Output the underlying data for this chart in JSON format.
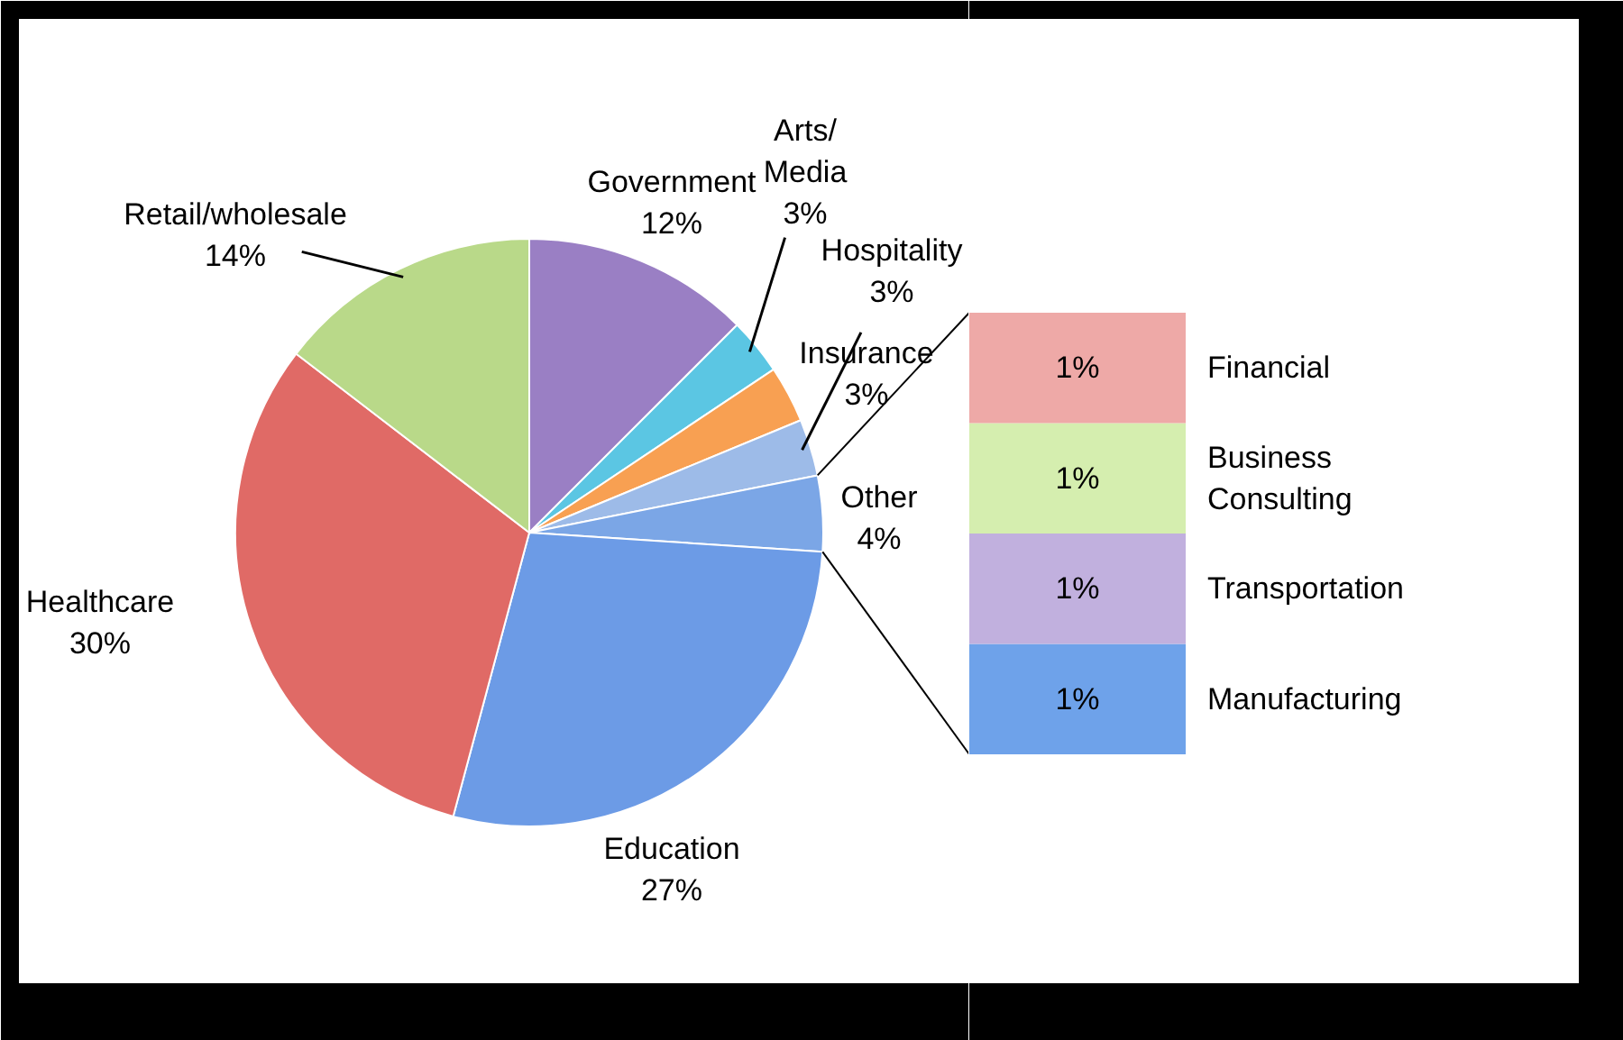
{
  "chart_data": [
    {
      "type": "pie",
      "categories": [
        "Government",
        "Arts/\nMedia",
        "Insurance",
        "Hospitality",
        "Other",
        "Education",
        "Healthcare",
        "Retail/wholesale"
      ],
      "values": [
        12,
        3,
        3,
        3,
        4,
        27,
        30,
        14
      ],
      "colors": [
        "#9a7fc4",
        "#5bc6e3",
        "#f8a052",
        "#9dbbe8",
        "#7ba6e6",
        "#6c9be6",
        "#e06a66",
        "#b9d989"
      ],
      "value_labels": [
        "12%",
        "3%",
        "3%",
        "3%",
        "4%",
        "27%",
        "30%",
        "14%"
      ]
    },
    {
      "type": "bar",
      "stacked": true,
      "categories": [
        null
      ],
      "series": [
        {
          "name": "Manufacturing",
          "color": "#6ea2ea",
          "values": [
            1
          ],
          "value_labels": [
            "1%"
          ]
        },
        {
          "name": "Transportation",
          "color": "#c1b0de",
          "values": [
            1
          ],
          "value_labels": [
            "1%"
          ]
        },
        {
          "name": "Business\nConsulting",
          "color": "#d5eeaf",
          "values": [
            1
          ],
          "value_labels": [
            "1%"
          ]
        },
        {
          "name": "Financial",
          "color": "#eea9a7",
          "values": [
            1
          ],
          "value_labels": [
            "1%"
          ]
        }
      ]
    }
  ]
}
